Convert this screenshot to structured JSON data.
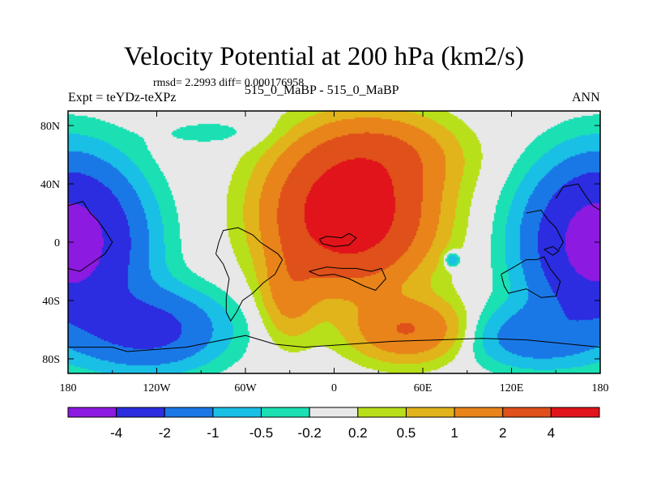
{
  "chart_data": {
    "type": "heatmap",
    "title": "Velocity Potential at 200 hPa (km2/s)",
    "stats": "rmsd= 2.2993 diff= 0.000176958",
    "left_label": "Expt = teYDz-teXPz",
    "center_label": "515_0_MaBP - 515_0_MaBP",
    "right_label": "ANN",
    "x_axis": {
      "range": [
        -180,
        180
      ],
      "ticks": [
        {
          "value": -180,
          "label": "180"
        },
        {
          "value": -120,
          "label": "120W"
        },
        {
          "value": -60,
          "label": "60W"
        },
        {
          "value": 0,
          "label": "0"
        },
        {
          "value": 60,
          "label": "60E"
        },
        {
          "value": 120,
          "label": "120E"
        },
        {
          "value": 180,
          "label": "180"
        }
      ]
    },
    "y_axis": {
      "range": [
        -90,
        90
      ],
      "ticks": [
        {
          "value": 80,
          "label": "80N"
        },
        {
          "value": 40,
          "label": "40N"
        },
        {
          "value": 0,
          "label": "0"
        },
        {
          "value": -40,
          "label": "40S"
        },
        {
          "value": -80,
          "label": "80S"
        }
      ]
    },
    "colorbar": {
      "levels": [
        "-4",
        "-2",
        "-1",
        "-0.5",
        "-0.2",
        "0.2",
        "0.5",
        "1",
        "2",
        "4"
      ],
      "colors": [
        "#8c1ae0",
        "#2c2ce0",
        "#1a78e6",
        "#1abfe6",
        "#1ae0b4",
        "#e8e8e8",
        "#b8e01a",
        "#e0b41a",
        "#e8841a",
        "#e0501a",
        "#e0141a"
      ]
    },
    "fields": [
      {
        "lon": -180,
        "lat": 0,
        "amp": -5.5,
        "slon": 42,
        "slat": 48
      },
      {
        "lon": 180,
        "lat": 0,
        "amp": -5.5,
        "slon": 42,
        "slat": 48
      },
      {
        "lon": -125,
        "lat": -60,
        "amp": -2.5,
        "slon": 45,
        "slat": 25
      },
      {
        "lon": 135,
        "lat": -65,
        "amp": -1.5,
        "slon": 40,
        "slat": 20
      },
      {
        "lon": -80,
        "lat": 75,
        "amp": -0.3,
        "slon": 40,
        "slat": 10
      },
      {
        "lon": 10,
        "lat": 20,
        "amp": 6.2,
        "slon": 45,
        "slat": 42
      },
      {
        "lon": 35,
        "lat": 60,
        "amp": 1.5,
        "slon": 45,
        "slat": 25
      },
      {
        "lon": -30,
        "lat": -35,
        "amp": 1.2,
        "slon": 18,
        "slat": 30
      },
      {
        "lon": 50,
        "lat": -60,
        "amp": 2.0,
        "slon": 35,
        "slat": 20
      },
      {
        "lon": 80,
        "lat": -12,
        "amp": -1.2,
        "slon": 5,
        "slat": 5
      }
    ]
  }
}
